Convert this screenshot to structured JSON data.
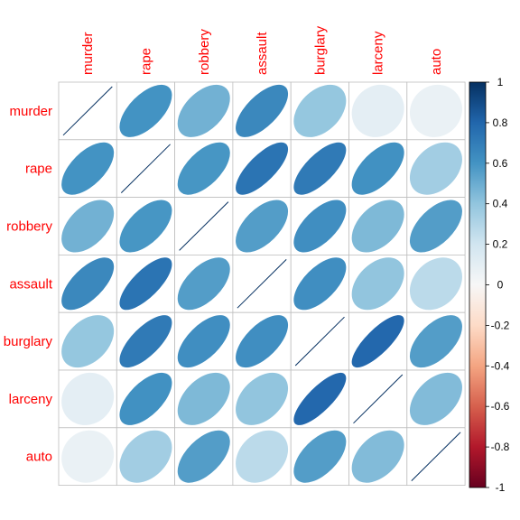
{
  "chart_data": {
    "type": "heatmap",
    "subtype": "correlation-ellipse",
    "variables": [
      "murder",
      "rape",
      "robbery",
      "assault",
      "burglary",
      "larceny",
      "auto"
    ],
    "matrix": [
      [
        1.0,
        0.6,
        0.48,
        0.65,
        0.39,
        0.1,
        0.07
      ],
      [
        0.6,
        1.0,
        0.59,
        0.74,
        0.71,
        0.61,
        0.35
      ],
      [
        0.48,
        0.59,
        1.0,
        0.56,
        0.62,
        0.45,
        0.56
      ],
      [
        0.65,
        0.74,
        0.56,
        1.0,
        0.62,
        0.4,
        0.27
      ],
      [
        0.39,
        0.71,
        0.62,
        0.62,
        1.0,
        0.79,
        0.56
      ],
      [
        0.1,
        0.61,
        0.45,
        0.4,
        0.79,
        1.0,
        0.44
      ],
      [
        0.07,
        0.35,
        0.56,
        0.27,
        0.56,
        0.44,
        1.0
      ]
    ],
    "legend": {
      "ticks": [
        "1",
        "0.8",
        "0.6",
        "0.4",
        "0.2",
        "0",
        "-0.2",
        "-0.4",
        "-0.6",
        "-0.8",
        "-1"
      ],
      "range": [
        -1,
        1
      ],
      "position": "right"
    },
    "colors": {
      "label": "#ff0000",
      "neg_dark": "#67001F",
      "neutral": "#F7F7F7",
      "pos_dark": "#053061"
    }
  }
}
